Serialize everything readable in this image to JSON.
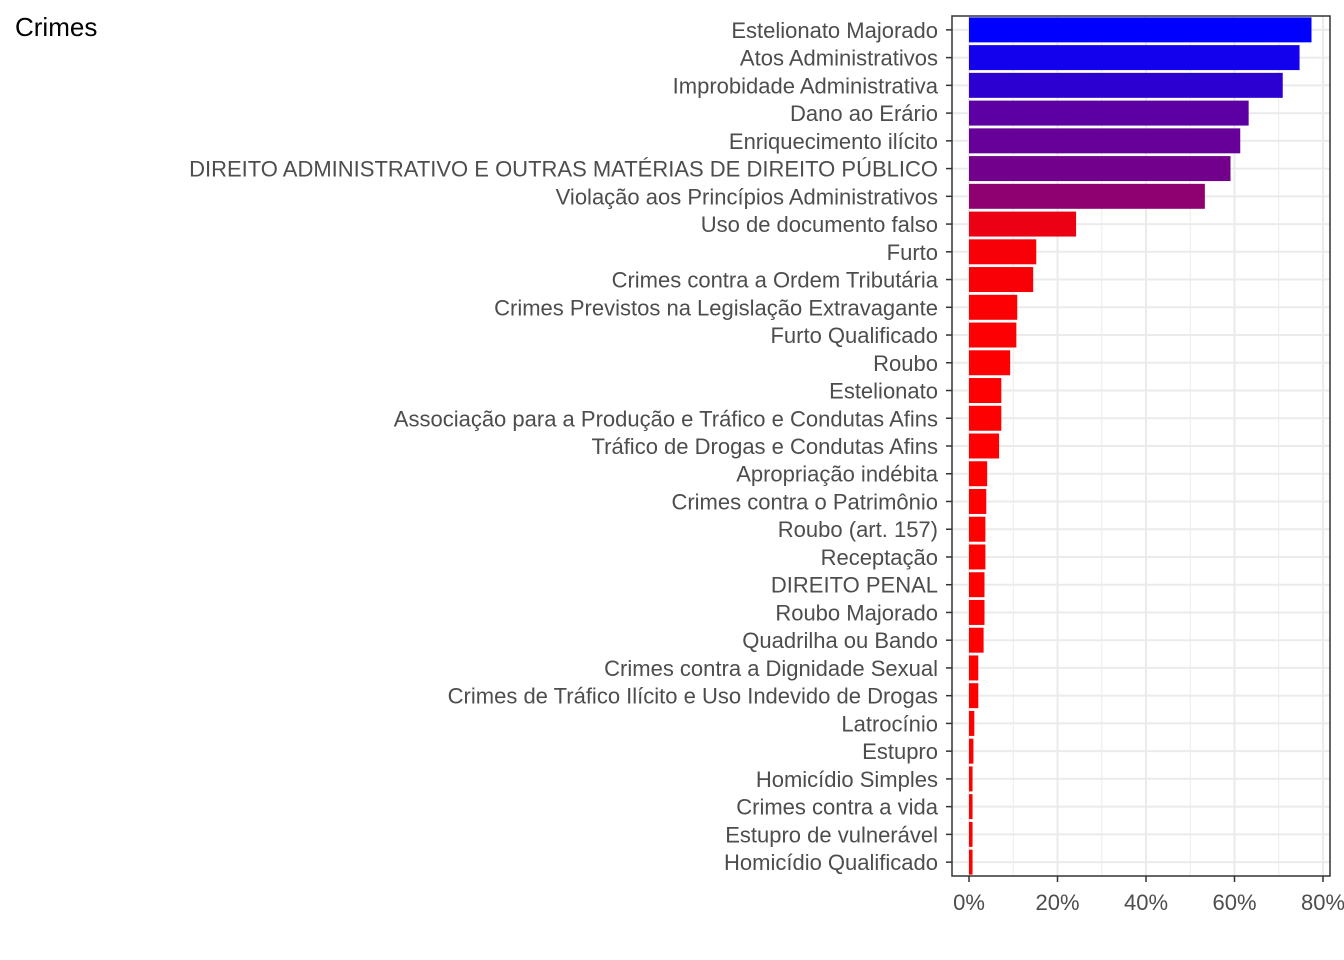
{
  "chart_data": {
    "type": "bar",
    "orientation": "horizontal",
    "title": "Crimes",
    "xlabel": "",
    "ylabel": "",
    "xlim": [
      0,
      0.8
    ],
    "x_ticks": [
      0,
      0.2,
      0.4,
      0.6,
      0.8
    ],
    "x_tick_labels": [
      "0%",
      "20%",
      "40%",
      "60%",
      "80%"
    ],
    "grid": true,
    "legend": "none",
    "color_scale": {
      "low": "#ff0000",
      "high": "#0000ff"
    },
    "categories": [
      "Estelionato Majorado",
      "Atos Administrativos",
      "Improbidade Administrativa",
      "Dano ao Erário",
      "Enriquecimento ilícito",
      "DIREITO ADMINISTRATIVO E OUTRAS MATÉRIAS DE DIREITO PÚBLICO",
      "Violação aos Princípios Administrativos",
      "Uso de documento falso",
      "Furto",
      "Crimes contra a Ordem Tributária",
      "Crimes Previstos na Legislação Extravagante",
      "Furto Qualificado",
      "Roubo",
      "Estelionato",
      "Associação para a Produção e Tráfico e Condutas Afins",
      "Tráfico de Drogas e Condutas Afins",
      "Apropriação indébita",
      "Crimes contra o Patrimônio",
      "Roubo (art. 157)",
      "Receptação",
      "DIREITO PENAL",
      "Roubo Majorado",
      "Quadrilha ou Bando",
      "Crimes contra a Dignidade Sexual",
      "Crimes de Tráfico Ilícito e Uso Indevido de Drogas",
      "Latrocínio",
      "Estupro",
      "Homicídio Simples",
      "Crimes contra a vida",
      "Estupro de vulnerável",
      "Homicídio Qualificado"
    ],
    "values": [
      0.774,
      0.747,
      0.709,
      0.632,
      0.613,
      0.591,
      0.533,
      0.242,
      0.152,
      0.145,
      0.109,
      0.107,
      0.093,
      0.073,
      0.073,
      0.068,
      0.041,
      0.039,
      0.037,
      0.037,
      0.035,
      0.035,
      0.033,
      0.021,
      0.021,
      0.012,
      0.01,
      0.008,
      0.008,
      0.008,
      0.008
    ]
  }
}
